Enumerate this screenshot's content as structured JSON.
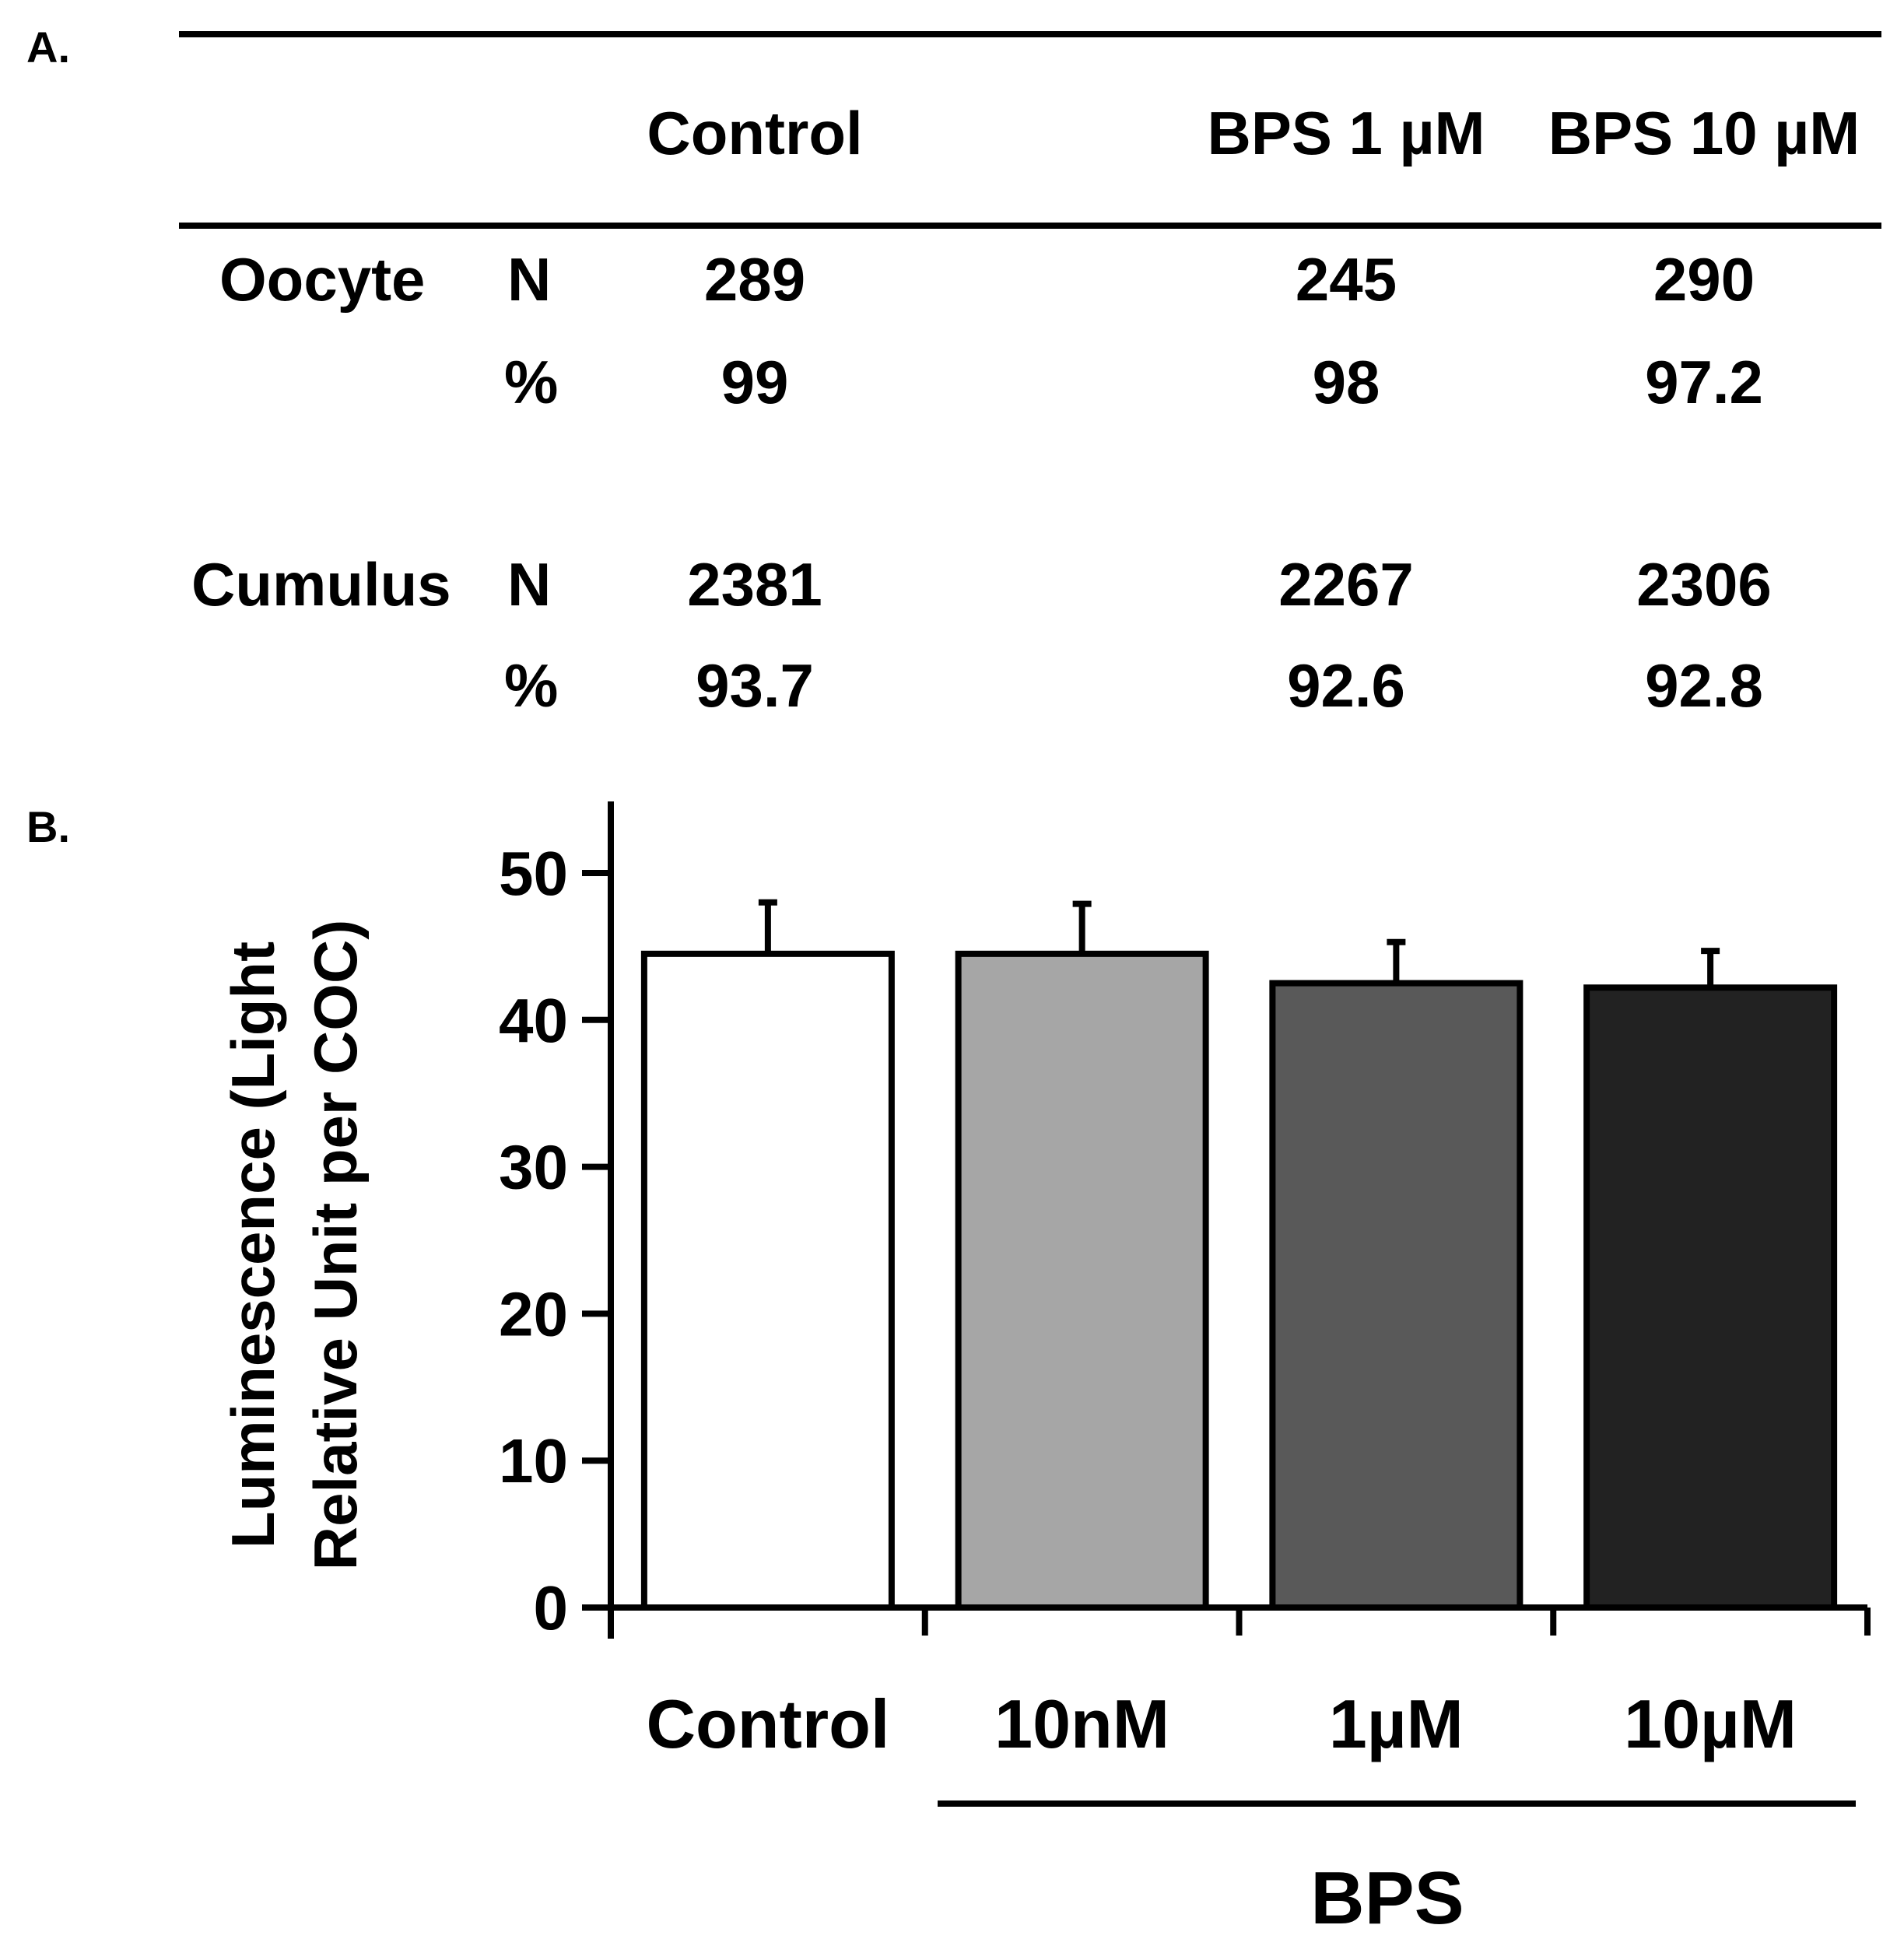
{
  "panel_a": {
    "label": "A.",
    "columns": [
      "Control",
      "BPS 1 µM",
      "BPS 10 µM"
    ],
    "rows": [
      {
        "group": "Oocyte",
        "stat": "N",
        "values": [
          "289",
          "245",
          "290"
        ]
      },
      {
        "group": "",
        "stat": "%",
        "values": [
          "99",
          "98",
          "97.2"
        ]
      },
      {
        "group": "Cumulus",
        "stat": "N",
        "values": [
          "2381",
          "2267",
          "2306"
        ]
      },
      {
        "group": "",
        "stat": "%",
        "values": [
          "93.7",
          "92.6",
          "92.8"
        ]
      }
    ]
  },
  "panel_b": {
    "label": "B."
  },
  "chart_data": {
    "type": "bar",
    "title": "",
    "categories": [
      "Control",
      "10nM",
      "1µM",
      "10µM"
    ],
    "values": [
      44.5,
      44.5,
      42.5,
      42.2
    ],
    "error_upper": [
      3.5,
      3.4,
      2.8,
      2.5
    ],
    "bar_colors": [
      "#ffffff",
      "#a6a6a6",
      "#595959",
      "#222222"
    ],
    "xlabel": "",
    "ylabel_lines": [
      "Luminescence (Light",
      "Relative Unit per COC)"
    ],
    "ylim": [
      0,
      55
    ],
    "yticks": [
      0,
      10,
      20,
      30,
      40,
      50
    ],
    "group_label": "BPS",
    "grid": false
  }
}
